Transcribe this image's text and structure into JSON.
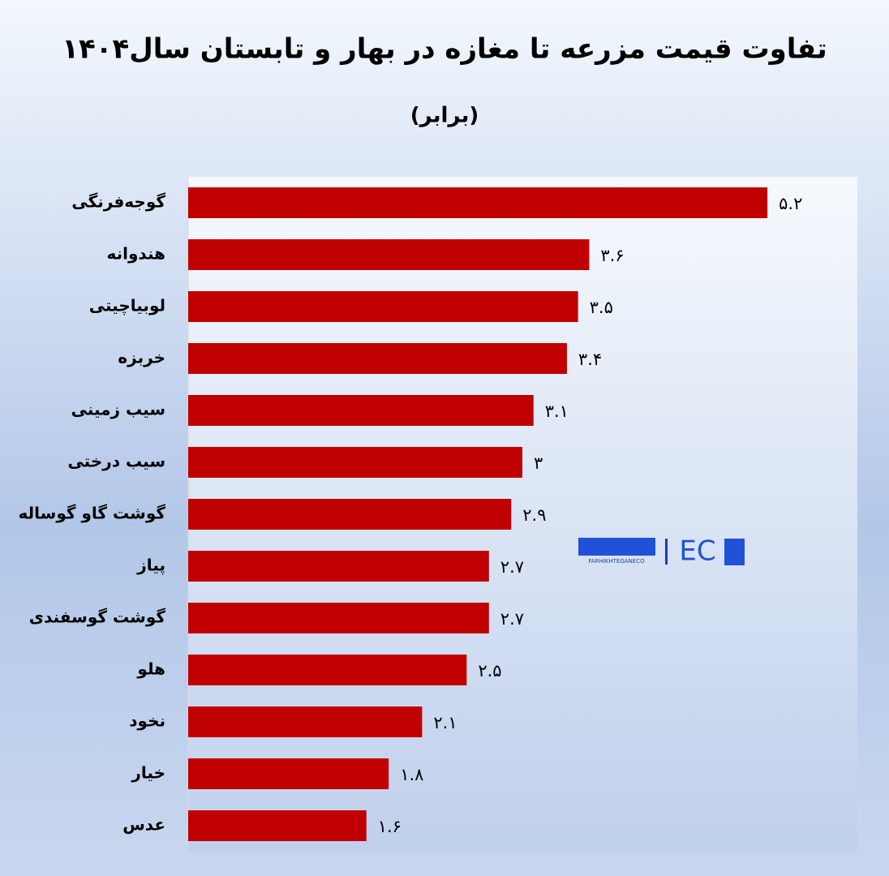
{
  "chart_data": {
    "type": "hbar",
    "title": "تفاوت قیمت مزرعه تا مغازه در بهار و تابستان سال۱۴۰۴",
    "subtitle": "(برابر)",
    "categories": [
      "گوجه‌فرنگی",
      "هندوانه",
      "لوبیاچیتی",
      "خربزه",
      "سیب زمینی",
      "سیب درختی",
      "گوشت گاو گوساله",
      "پیاز",
      "گوشت گوسفندی",
      "هلو",
      "نخود",
      "خیار",
      "عدس"
    ],
    "values": [
      5.2,
      3.6,
      3.5,
      3.4,
      3.1,
      3,
      2.9,
      2.7,
      2.7,
      2.5,
      2.1,
      1.8,
      1.6
    ],
    "value_labels": [
      "۵.۲",
      "۳.۶",
      "۳.۵",
      "۳.۴",
      "۳.۱",
      "۳",
      "۲.۹",
      "۲.۷",
      "۲.۷",
      "۲.۵",
      "۲.۱",
      "۱.۸",
      "۱.۶"
    ],
    "color": "#c00000",
    "xlim": [
      0,
      6
    ],
    "watermark": "FARHIKHTEGANECO",
    "watermark_logo": "EC"
  }
}
